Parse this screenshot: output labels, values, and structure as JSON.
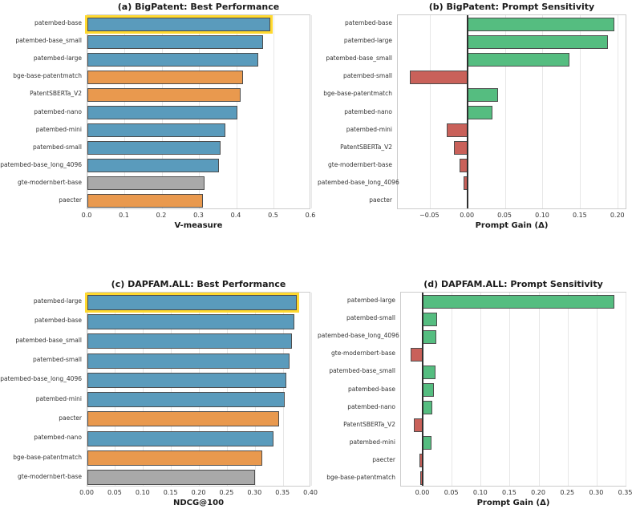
{
  "figure": {
    "background": "#ffffff"
  },
  "colors": {
    "blue": "#5a9bbc",
    "orange": "#e9994e",
    "gray": "#a9a9a9",
    "green": "#55bd80",
    "red": "#c9615a",
    "highlight": "#ffd92f",
    "bar_edge": "#4d4d4d",
    "zero_line": "#2f2f2f",
    "grid": "#e7e7e7",
    "axis_border": "#cccccc",
    "text": "#1a1a1a"
  },
  "chart_data": [
    {
      "id": "a",
      "type": "bar",
      "orientation": "horizontal",
      "title": "(a) BigPatent: Best Performance",
      "xlabel": "V-measure",
      "xlim": [
        0.0,
        0.6
      ],
      "xticks": [
        0.0,
        0.1,
        0.2,
        0.3,
        0.4,
        0.5,
        0.6
      ],
      "xtick_labels": [
        "0.0",
        "0.1",
        "0.2",
        "0.3",
        "0.4",
        "0.5",
        "0.6"
      ],
      "grid": true,
      "zero_line": false,
      "bars": [
        {
          "label": "patembed-base",
          "value": 0.49,
          "color": "blue",
          "highlight": true
        },
        {
          "label": "patembed-base_small",
          "value": 0.472,
          "color": "blue",
          "highlight": false
        },
        {
          "label": "patembed-large",
          "value": 0.458,
          "color": "blue",
          "highlight": false
        },
        {
          "label": "bge-base-patentmatch",
          "value": 0.418,
          "color": "orange",
          "highlight": false
        },
        {
          "label": "PatentSBERTa_V2",
          "value": 0.41,
          "color": "orange",
          "highlight": false
        },
        {
          "label": "patembed-nano",
          "value": 0.402,
          "color": "blue",
          "highlight": false
        },
        {
          "label": "patembed-mini",
          "value": 0.37,
          "color": "blue",
          "highlight": false
        },
        {
          "label": "patembed-small",
          "value": 0.356,
          "color": "blue",
          "highlight": false
        },
        {
          "label": "patembed-base_long_4096",
          "value": 0.352,
          "color": "blue",
          "highlight": false
        },
        {
          "label": "gte-modernbert-base",
          "value": 0.315,
          "color": "gray",
          "highlight": false
        },
        {
          "label": "paecter",
          "value": 0.309,
          "color": "orange",
          "highlight": false
        }
      ]
    },
    {
      "id": "b",
      "type": "bar",
      "orientation": "horizontal",
      "title": "(b) BigPatent: Prompt Sensitivity",
      "xlabel": "Prompt Gain (Δ)",
      "xlim": [
        -0.093,
        0.212
      ],
      "xticks": [
        -0.05,
        0.0,
        0.05,
        0.1,
        0.15,
        0.2
      ],
      "xtick_labels": [
        "−0.05",
        "0.00",
        "0.05",
        "0.10",
        "0.15",
        "0.20"
      ],
      "grid": true,
      "zero_line": true,
      "bars": [
        {
          "label": "patembed-base",
          "value": 0.195,
          "color": "green",
          "highlight": false
        },
        {
          "label": "patembed-large",
          "value": 0.186,
          "color": "green",
          "highlight": false
        },
        {
          "label": "patembed-base_small",
          "value": 0.135,
          "color": "green",
          "highlight": false
        },
        {
          "label": "patembed-small",
          "value": -0.077,
          "color": "red",
          "highlight": false
        },
        {
          "label": "bge-base-patentmatch",
          "value": 0.04,
          "color": "green",
          "highlight": false
        },
        {
          "label": "patembed-nano",
          "value": 0.033,
          "color": "green",
          "highlight": false
        },
        {
          "label": "patembed-mini",
          "value": -0.028,
          "color": "red",
          "highlight": false
        },
        {
          "label": "PatentSBERTa_V2",
          "value": -0.018,
          "color": "red",
          "highlight": false
        },
        {
          "label": "gte-modernbert-base",
          "value": -0.011,
          "color": "red",
          "highlight": false
        },
        {
          "label": "patembed-base_long_4096",
          "value": -0.006,
          "color": "red",
          "highlight": false
        },
        {
          "label": "paecter",
          "value": -0.001,
          "color": "red",
          "highlight": false
        }
      ]
    },
    {
      "id": "c",
      "type": "bar",
      "orientation": "horizontal",
      "title": "(c) DAPFAM.ALL: Best Performance",
      "xlabel": "NDCG@100",
      "xlim": [
        0.0,
        0.4
      ],
      "xticks": [
        0.0,
        0.05,
        0.1,
        0.15,
        0.2,
        0.25,
        0.3,
        0.35,
        0.4
      ],
      "xtick_labels": [
        "0.00",
        "0.05",
        "0.10",
        "0.15",
        "0.20",
        "0.25",
        "0.30",
        "0.35",
        "0.40"
      ],
      "grid": true,
      "zero_line": false,
      "bars": [
        {
          "label": "patembed-large",
          "value": 0.374,
          "color": "blue",
          "highlight": true
        },
        {
          "label": "patembed-base",
          "value": 0.37,
          "color": "blue",
          "highlight": false
        },
        {
          "label": "patembed-base_small",
          "value": 0.365,
          "color": "blue",
          "highlight": false
        },
        {
          "label": "patembed-small",
          "value": 0.361,
          "color": "blue",
          "highlight": false
        },
        {
          "label": "patembed-base_long_4096",
          "value": 0.356,
          "color": "blue",
          "highlight": false
        },
        {
          "label": "patembed-mini",
          "value": 0.352,
          "color": "blue",
          "highlight": false
        },
        {
          "label": "paecter",
          "value": 0.342,
          "color": "orange",
          "highlight": false
        },
        {
          "label": "patembed-nano",
          "value": 0.333,
          "color": "blue",
          "highlight": false
        },
        {
          "label": "bge-base-patentmatch",
          "value": 0.313,
          "color": "orange",
          "highlight": false
        },
        {
          "label": "gte-modernbert-base",
          "value": 0.3,
          "color": "gray",
          "highlight": false
        }
      ]
    },
    {
      "id": "d",
      "type": "bar",
      "orientation": "horizontal",
      "title": "(d) DAPFAM.ALL: Prompt Sensitivity",
      "xlabel": "Prompt Gain (Δ)",
      "xlim": [
        -0.038,
        0.352
      ],
      "xticks": [
        0.0,
        0.05,
        0.1,
        0.15,
        0.2,
        0.25,
        0.3,
        0.35
      ],
      "xtick_labels": [
        "0.00",
        "0.05",
        "0.10",
        "0.15",
        "0.20",
        "0.25",
        "0.30",
        "0.35"
      ],
      "grid": true,
      "zero_line": true,
      "bars": [
        {
          "label": "patembed-large",
          "value": 0.33,
          "color": "green",
          "highlight": false
        },
        {
          "label": "patembed-small",
          "value": 0.024,
          "color": "green",
          "highlight": false
        },
        {
          "label": "patembed-base_long_4096",
          "value": 0.023,
          "color": "green",
          "highlight": false
        },
        {
          "label": "gte-modernbert-base",
          "value": -0.022,
          "color": "red",
          "highlight": false
        },
        {
          "label": "patembed-base_small",
          "value": 0.022,
          "color": "green",
          "highlight": false
        },
        {
          "label": "patembed-base",
          "value": 0.019,
          "color": "green",
          "highlight": false
        },
        {
          "label": "patembed-nano",
          "value": 0.016,
          "color": "green",
          "highlight": false
        },
        {
          "label": "PatentSBERTa_V2",
          "value": -0.016,
          "color": "red",
          "highlight": false
        },
        {
          "label": "patembed-mini",
          "value": 0.015,
          "color": "green",
          "highlight": false
        },
        {
          "label": "paecter",
          "value": -0.006,
          "color": "red",
          "highlight": false
        },
        {
          "label": "bge-base-patentmatch",
          "value": -0.005,
          "color": "red",
          "highlight": false
        }
      ]
    }
  ]
}
